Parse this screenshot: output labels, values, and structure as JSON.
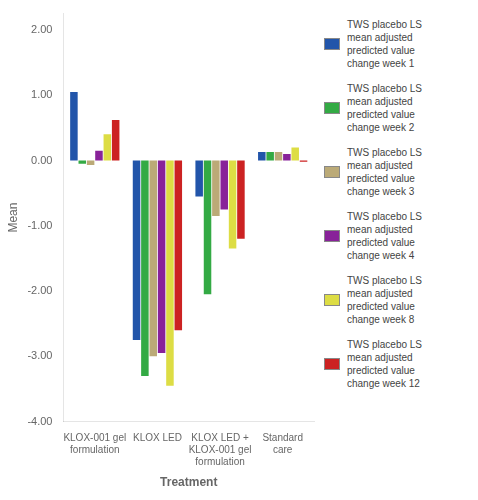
{
  "chart_data": {
    "type": "bar",
    "categories": [
      "KLOX-001 gel\nformulation",
      "KLOX LED",
      "KLOX LED +\nKLOX-001 gel\nformulation",
      "Standard\ncare"
    ],
    "series": [
      {
        "name": "TWS placebo LS\nmean adjusted\npredicted value\nchange week 1",
        "color": "#2255aa",
        "values": [
          1.05,
          -2.75,
          -0.55,
          0.13
        ]
      },
      {
        "name": "TWS placebo LS\nmean adjusted\npredicted value\nchange week 2",
        "color": "#33aa44",
        "values": [
          -0.05,
          -3.3,
          -2.05,
          0.13
        ]
      },
      {
        "name": "TWS placebo LS\nmean adjusted\npredicted value\nchange week 3",
        "color": "#bbaa77",
        "values": [
          -0.07,
          -3.0,
          -0.85,
          0.13
        ]
      },
      {
        "name": "TWS placebo LS\nmean adjusted\npredicted value\nchange week 4",
        "color": "#882299",
        "values": [
          0.15,
          -2.95,
          -0.75,
          0.1
        ]
      },
      {
        "name": "TWS placebo LS\nmean adjusted\npredicted value\nchange week 8",
        "color": "#dddd44",
        "values": [
          0.4,
          -3.45,
          -1.35,
          0.2
        ]
      },
      {
        "name": "TWS placebo LS\nmean adjusted\npredicted value\nchange week 12",
        "color": "#cc2222",
        "values": [
          0.62,
          -2.6,
          -1.2,
          -0.02
        ]
      }
    ],
    "xlabel": "Treatment",
    "ylabel": "Mean",
    "ylim": [
      -4.0,
      2.25
    ],
    "yticks": [
      {
        "value": -4.0,
        "label": "-4.00"
      },
      {
        "value": -3.0,
        "label": "-3.00"
      },
      {
        "value": -2.0,
        "label": "-2.00"
      },
      {
        "value": -1.0,
        "label": "-1.00"
      },
      {
        "value": 0.0,
        "label": "0.00"
      },
      {
        "value": 1.0,
        "label": "1.00"
      },
      {
        "value": 2.0,
        "label": "2.00"
      }
    ],
    "grid": false,
    "legend": "right"
  }
}
